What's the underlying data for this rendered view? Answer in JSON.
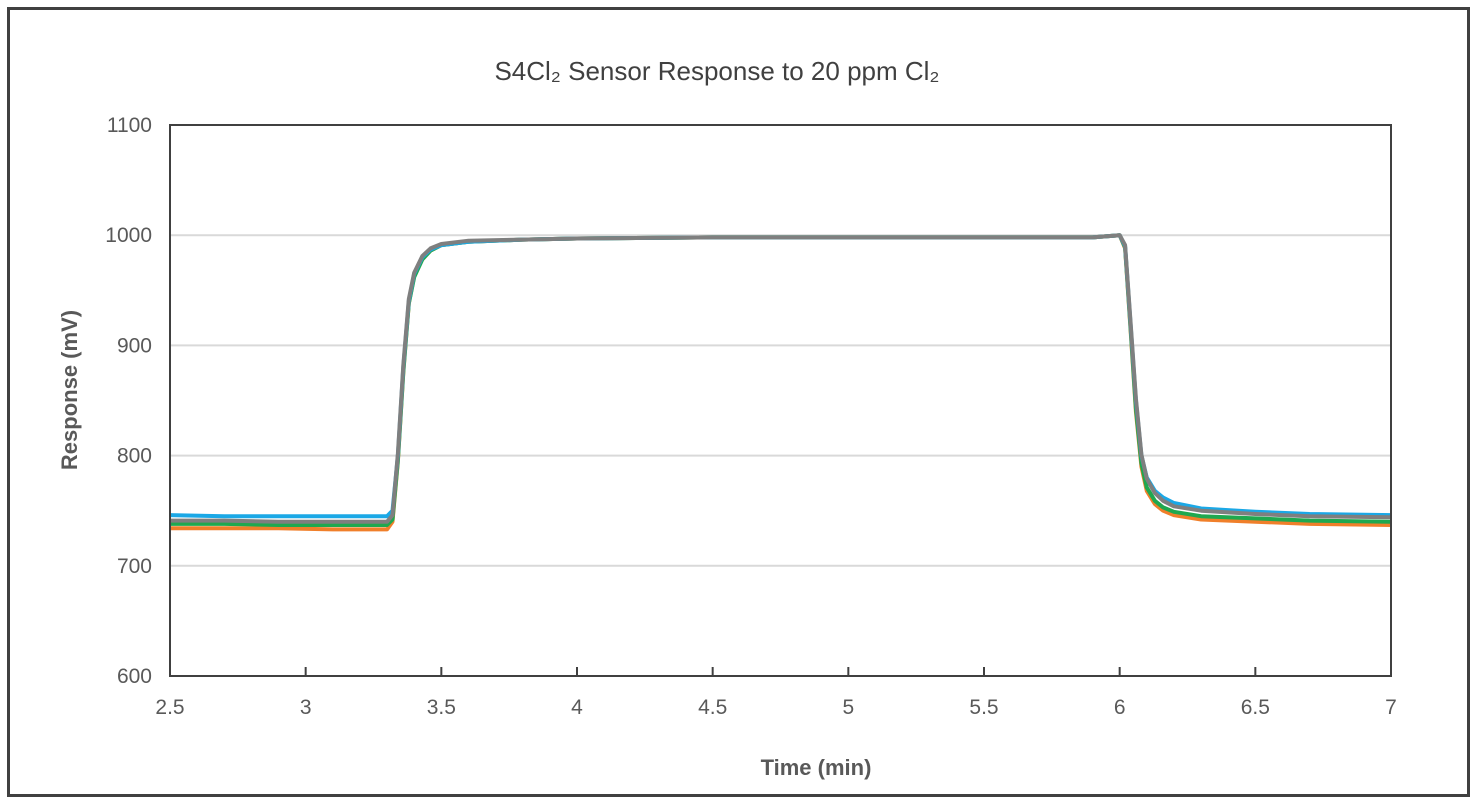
{
  "chart_data": {
    "type": "line",
    "title": "S4Cl₂ Sensor Response to 20 ppm Cl₂",
    "xlabel": "Time (min)",
    "ylabel": "Response (mV)",
    "xlim": [
      2.5,
      7
    ],
    "ylim": [
      600,
      1100
    ],
    "xticks": [
      2.5,
      3,
      3.5,
      4,
      4.5,
      5,
      5.5,
      6,
      6.5,
      7
    ],
    "xtick_labels": [
      "2.5",
      "3",
      "3.5",
      "4",
      "4.5",
      "5",
      "5.5",
      "6",
      "6.5",
      "7"
    ],
    "yticks": [
      600,
      700,
      800,
      900,
      1000,
      1100
    ],
    "ytick_labels": [
      "600",
      "700",
      "800",
      "900",
      "1000",
      "1100"
    ],
    "grid": "horizontal",
    "legend": "none",
    "x": [
      2.5,
      2.7,
      2.9,
      3.1,
      3.3,
      3.32,
      3.34,
      3.36,
      3.38,
      3.4,
      3.43,
      3.46,
      3.5,
      3.6,
      3.8,
      4.0,
      4.5,
      5.0,
      5.5,
      5.9,
      6.0,
      6.02,
      6.04,
      6.06,
      6.08,
      6.1,
      6.13,
      6.16,
      6.2,
      6.3,
      6.5,
      6.7,
      7.0
    ],
    "series": [
      {
        "color": "#f07f2a",
        "values": [
          734,
          734,
          734,
          733,
          733,
          740,
          795,
          875,
          938,
          963,
          978,
          986,
          991,
          994,
          996,
          997,
          998,
          998,
          998,
          998,
          1000,
          988,
          915,
          840,
          790,
          768,
          756,
          750,
          746,
          742,
          740,
          738,
          737
        ]
      },
      {
        "color": "#1fa84f",
        "values": [
          738,
          738,
          737,
          737,
          737,
          742,
          796,
          876,
          938,
          962,
          978,
          986,
          991,
          994,
          996,
          997,
          998,
          998,
          998,
          998,
          1000,
          989,
          917,
          843,
          793,
          771,
          759,
          753,
          749,
          745,
          743,
          741,
          740
        ]
      },
      {
        "color": "#1ba8e6",
        "values": [
          746,
          745,
          745,
          745,
          745,
          750,
          800,
          880,
          940,
          965,
          980,
          987,
          991,
          994,
          996,
          997,
          998,
          998,
          998,
          998,
          1000,
          990,
          920,
          850,
          800,
          780,
          768,
          762,
          757,
          752,
          749,
          747,
          746
        ]
      },
      {
        "color": "#7f7f7f",
        "values": [
          741,
          741,
          740,
          740,
          740,
          746,
          802,
          882,
          942,
          966,
          981,
          988,
          992,
          995,
          996,
          997,
          998,
          998,
          998,
          998,
          1000,
          991,
          922,
          852,
          801,
          779,
          766,
          759,
          754,
          750,
          747,
          745,
          744
        ]
      }
    ]
  }
}
